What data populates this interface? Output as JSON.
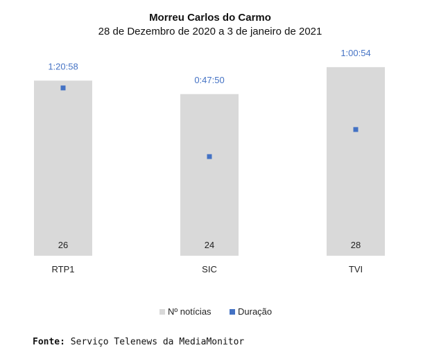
{
  "chart_data": {
    "type": "bar",
    "title": "Morreu Carlos do Carmo",
    "subtitle": "28 de Dezembro de 2020 a 3 de janeiro de 2021",
    "categories": [
      "RTP1",
      "SIC",
      "TVI"
    ],
    "series": [
      {
        "name": "Nº notícias",
        "type": "bar",
        "axis": "primary",
        "values": [
          26,
          24,
          28
        ],
        "color": "#d9d9d9"
      },
      {
        "name": "Duração",
        "type": "marker",
        "axis": "secondary",
        "values": [
          "1:20:58",
          "0:47:50",
          "1:00:54"
        ],
        "seconds": [
          4858,
          2870,
          3654
        ],
        "color": "#4472c4"
      }
    ],
    "primary_ylim": [
      0,
      32
    ],
    "secondary_ylim_seconds": [
      0,
      6240
    ],
    "label_color": "#4472c4",
    "grid": false,
    "legend_position": "bottom"
  },
  "source": {
    "label": "Fonte:",
    "text": " Serviço Telenews da MediaMonitor"
  }
}
